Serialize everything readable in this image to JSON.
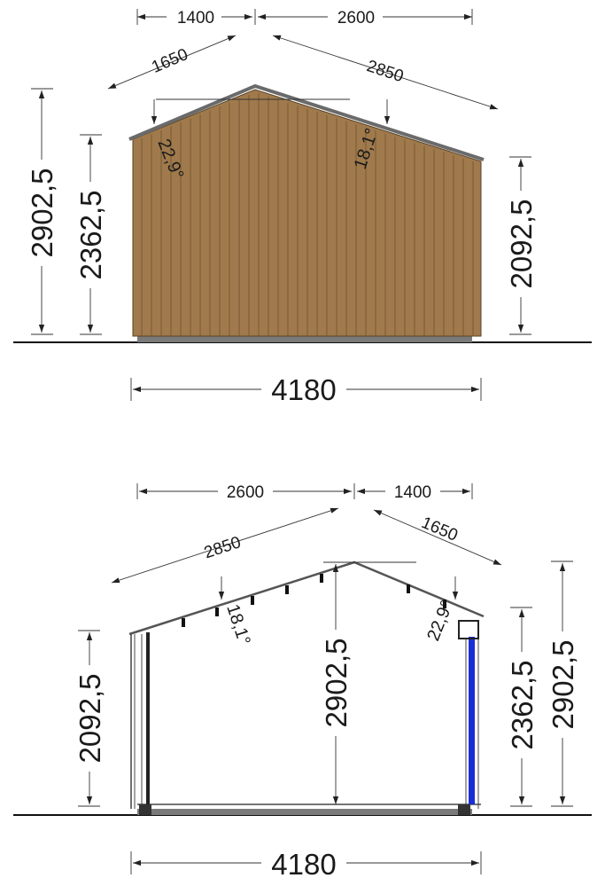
{
  "elevations": [
    {
      "id": "exterior",
      "top_segments": [
        "1400",
        "2600"
      ],
      "slope_lengths": [
        "1650",
        "2850"
      ],
      "angles": [
        "22,9°",
        "18,1°"
      ],
      "heights": [
        "2902,5",
        "2362,5",
        "2092,5"
      ],
      "width": "4180"
    },
    {
      "id": "section",
      "top_segments": [
        "2600",
        "1400"
      ],
      "slope_lengths": [
        "2850",
        "1650"
      ],
      "angles": [
        "18,1°",
        "22,9°"
      ],
      "heights": [
        "2092,5",
        "2902,5",
        "2362,5",
        "2902,5"
      ],
      "width": "4180"
    }
  ],
  "colors": {
    "wood": "#a07a4c",
    "wood_dark": "#6e5230",
    "roof": "#6a6a6a",
    "base": "#7a7a7a",
    "window_frame": "#1a2ed6"
  }
}
